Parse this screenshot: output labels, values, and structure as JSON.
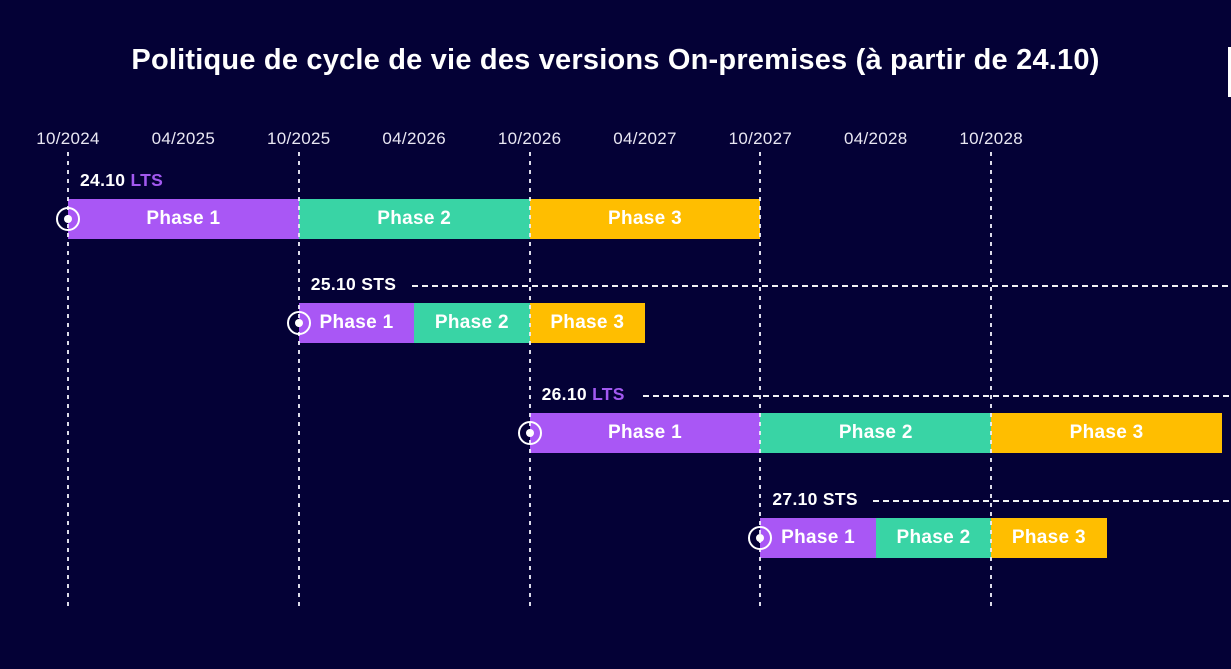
{
  "title": "Politique de cycle de vie des versions On-premises (à partir de 24.10)",
  "colors": {
    "background": "#040136",
    "title_text": "#ffffff",
    "axis_text": "#e9e7f3",
    "gridline": "#eeecf8",
    "phase1": "#a957f5",
    "phase2": "#39d4a5",
    "phase3": "#ffbe00",
    "lts_channel_text": "#a259f0",
    "sts_channel_text": "#ffffff",
    "bar_text": "#ffffff"
  },
  "chart_data": {
    "type": "gantt",
    "title": "Politique de cycle de vie des versions On-premises (à partir de 24.10)",
    "x_axis": {
      "tick_labels": [
        "10/2024",
        "04/2025",
        "10/2025",
        "04/2026",
        "10/2026",
        "04/2027",
        "10/2027",
        "04/2028",
        "10/2028"
      ],
      "gridlines_at": [
        "2024-10",
        "2025-10",
        "2026-10",
        "2027-10",
        "2028-10"
      ],
      "timeline_start": "2024-10",
      "months_per_tick": 6,
      "grid": "vertical-dashed",
      "legend_position": "none"
    },
    "phase_colors": {
      "Phase 1": "#a957f5",
      "Phase 2": "#39d4a5",
      "Phase 3": "#ffbe00"
    },
    "rows": [
      {
        "version": "24.10",
        "channel": "LTS",
        "continuation_line": false,
        "phases": [
          {
            "label": "Phase 1",
            "start": "2024-10",
            "end": "2025-10"
          },
          {
            "label": "Phase 2",
            "start": "2025-10",
            "end": "2026-10"
          },
          {
            "label": "Phase 3",
            "start": "2026-10",
            "end": "2027-10"
          }
        ]
      },
      {
        "version": "25.10",
        "channel": "STS",
        "continuation_line": true,
        "phases": [
          {
            "label": "Phase 1",
            "start": "2025-10",
            "end": "2026-04"
          },
          {
            "label": "Phase 2",
            "start": "2026-04",
            "end": "2026-10"
          },
          {
            "label": "Phase 3",
            "start": "2026-10",
            "end": "2027-04"
          }
        ]
      },
      {
        "version": "26.10",
        "channel": "LTS",
        "continuation_line": true,
        "phases": [
          {
            "label": "Phase 1",
            "start": "2026-10",
            "end": "2027-10"
          },
          {
            "label": "Phase 2",
            "start": "2027-10",
            "end": "2028-10"
          },
          {
            "label": "Phase 3",
            "start": "2028-10",
            "end": "2029-10"
          }
        ]
      },
      {
        "version": "27.10",
        "channel": "STS",
        "continuation_line": true,
        "phases": [
          {
            "label": "Phase 1",
            "start": "2027-10",
            "end": "2028-04"
          },
          {
            "label": "Phase 2",
            "start": "2028-04",
            "end": "2028-10"
          },
          {
            "label": "Phase 3",
            "start": "2028-10",
            "end": "2029-04"
          }
        ]
      }
    ]
  }
}
